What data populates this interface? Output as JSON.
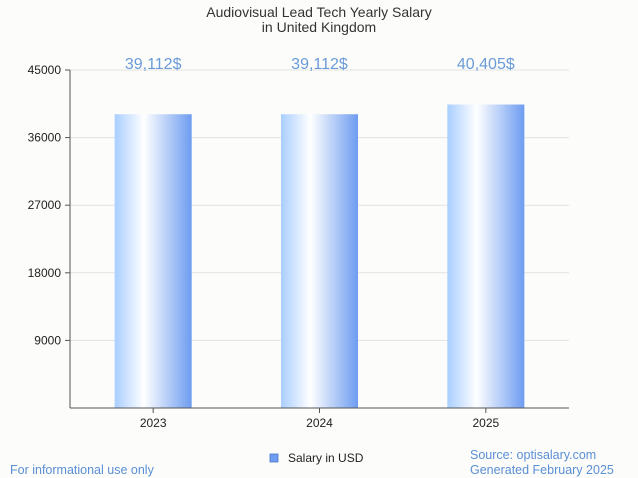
{
  "chart_data": {
    "type": "bar",
    "title": [
      "Audiovisual Lead Tech Yearly Salary",
      "in United Kingdom"
    ],
    "categories": [
      "2023",
      "2024",
      "2025"
    ],
    "series": [
      {
        "name": "Salary in USD",
        "values": [
          39112,
          39112,
          40405
        ],
        "labels": [
          "39,112$",
          "39,112$",
          "40,405$"
        ]
      }
    ],
    "ylim": [
      0,
      45000
    ],
    "yticks": [
      9000,
      18000,
      27000,
      36000,
      45000
    ],
    "grid": true,
    "legend_position": "bottom-center"
  },
  "footer": {
    "left_note": "For informational use only",
    "source": "Source: optisalary.com",
    "generated": "Generated February 2025"
  },
  "colors": {
    "bar_light": "#ffffff",
    "bar_mid": "#bcd9ff",
    "bar_dark": "#6d9cf0",
    "value_label": "#6a9bd8",
    "footer_text": "#5b8fd6",
    "grid": "#e2e2e2",
    "axis": "#555555"
  }
}
